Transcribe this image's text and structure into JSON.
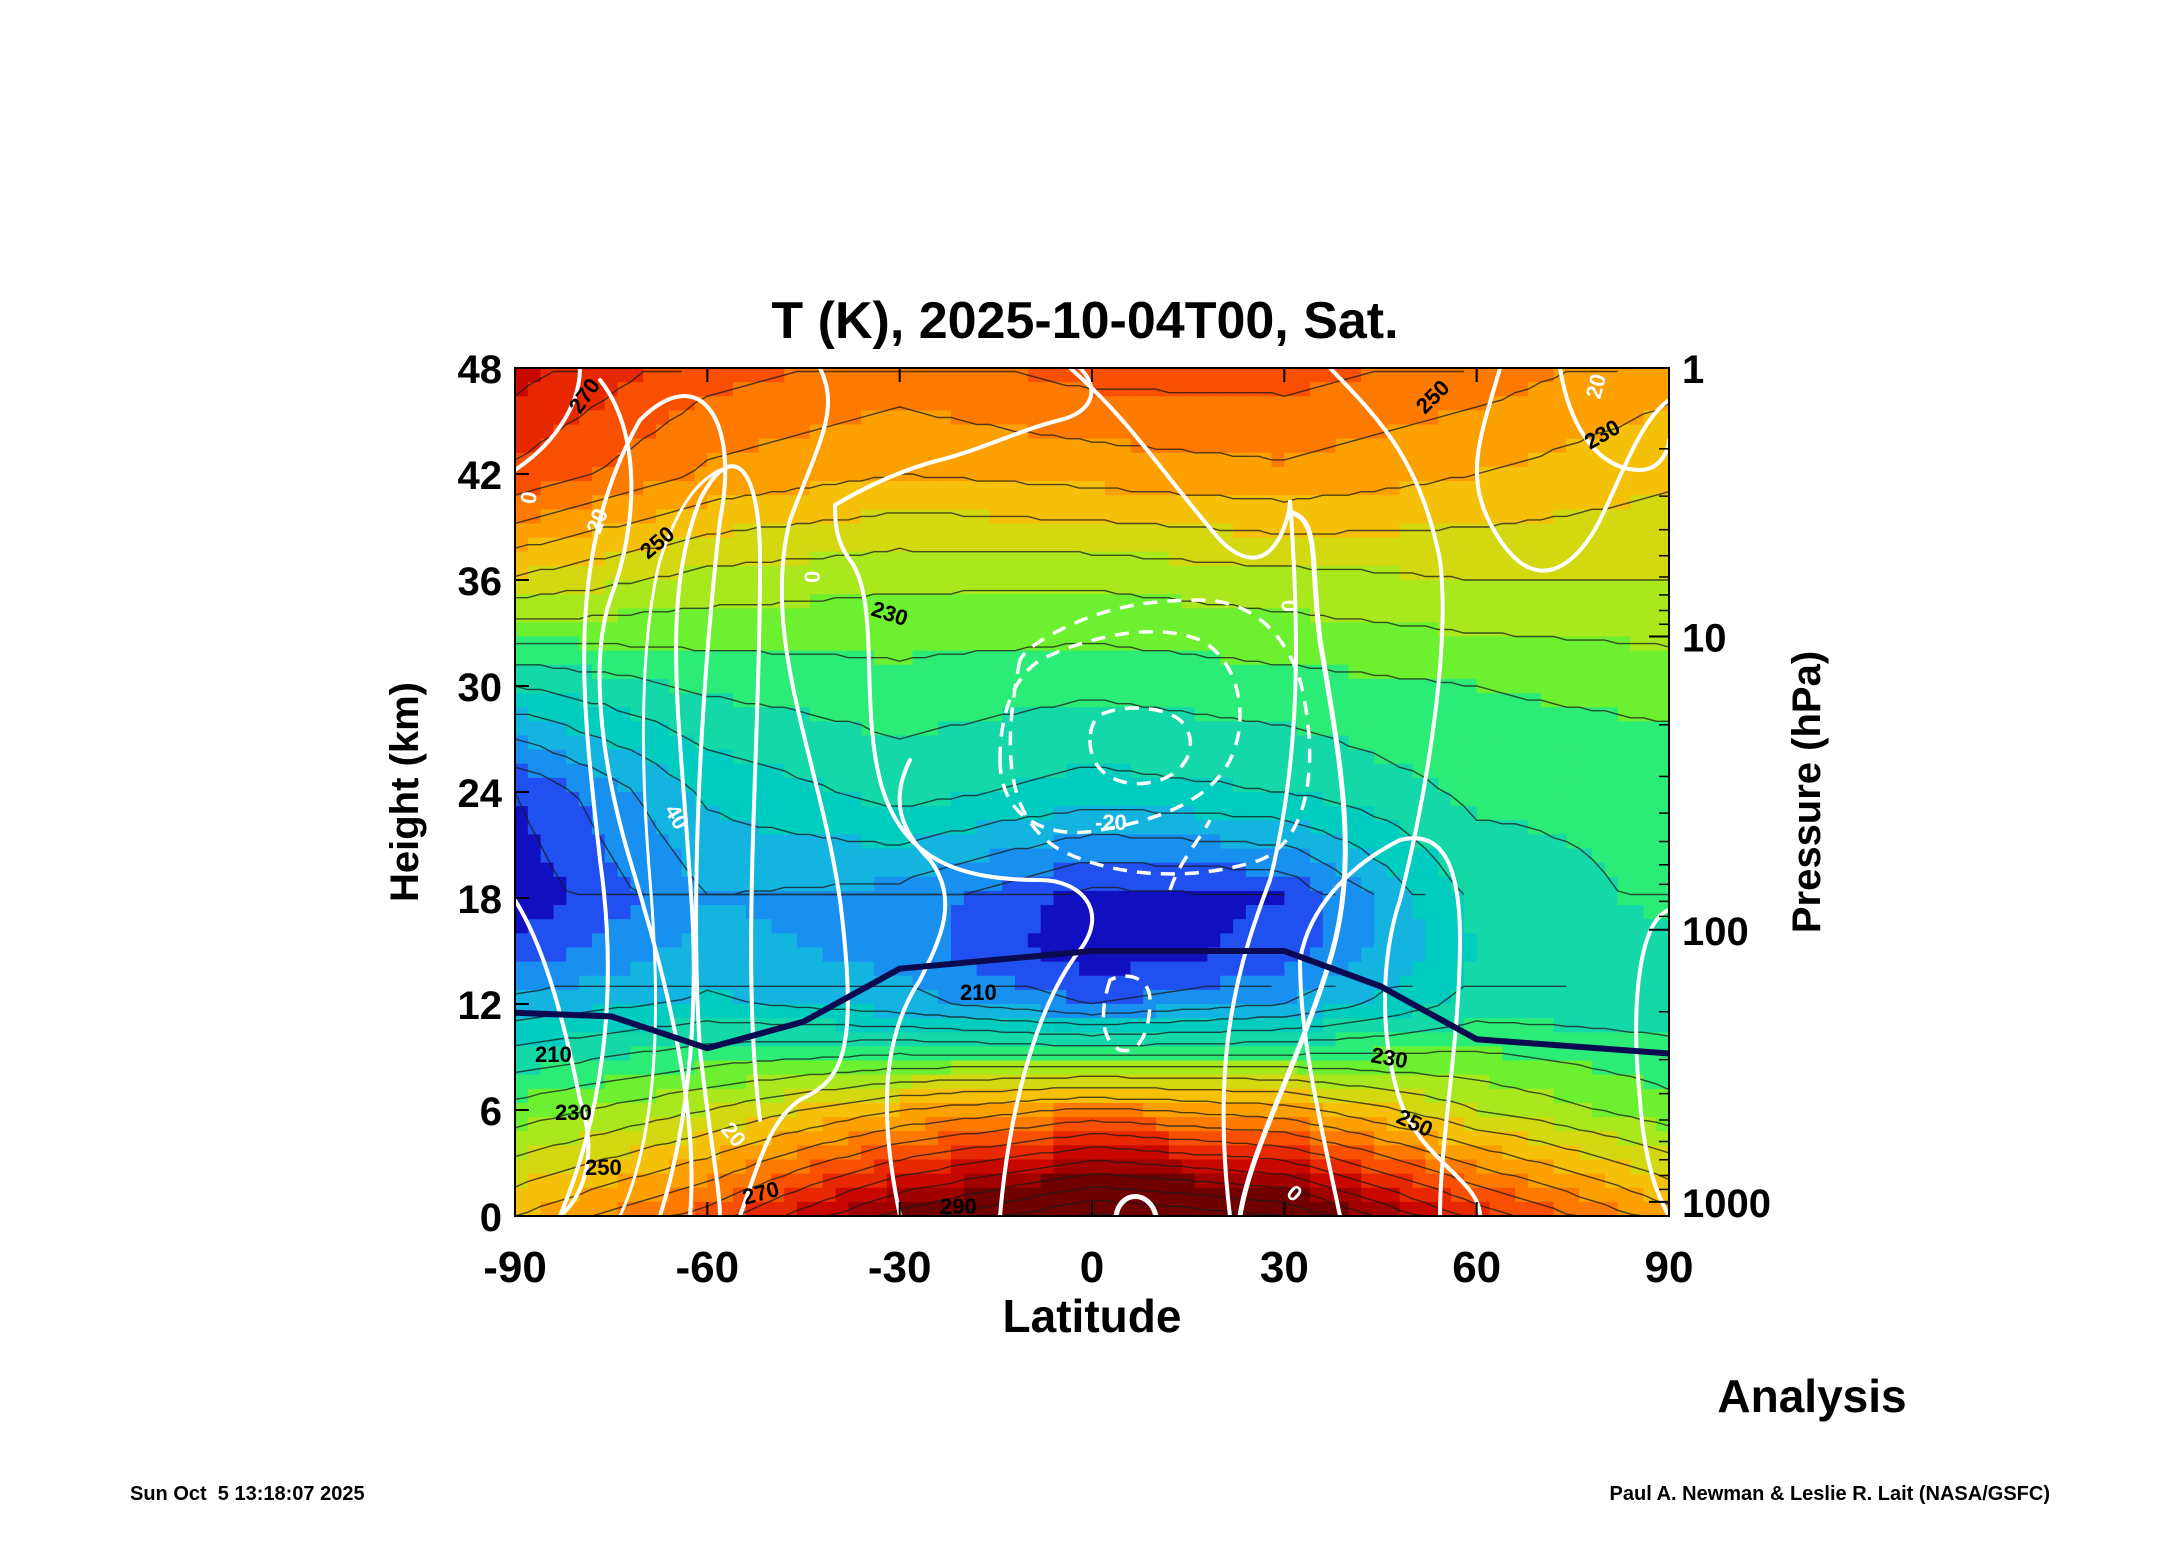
{
  "chart_data": {
    "type": "heatmap",
    "title": "T (K), 2025-10-04T00, Sat.",
    "xlabel": "Latitude",
    "ylabel_left": "Height (km)",
    "ylabel_right": "Pressure (hPa)",
    "xlim": [
      -90,
      90
    ],
    "ylim": [
      0,
      48
    ],
    "x_ticks": [
      -90,
      -60,
      -30,
      0,
      30,
      60,
      90
    ],
    "y_ticks": [
      0,
      6,
      12,
      18,
      24,
      30,
      36,
      42,
      48
    ],
    "pressure_ticks": [
      {
        "label": "1",
        "height_km": 48
      },
      {
        "label": "10",
        "height_km": 32.8
      },
      {
        "label": "100",
        "height_km": 16.2
      },
      {
        "label": "1000",
        "height_km": 0.8
      }
    ],
    "temperature_field": {
      "heights_km": [
        0,
        6,
        12,
        15,
        18,
        24,
        30,
        36,
        42,
        48
      ],
      "latitudes": [
        -90,
        -60,
        -30,
        0,
        30,
        60,
        90
      ],
      "values_K": [
        [
          250,
          262,
          282,
          296,
          290,
          268,
          252
        ],
        [
          232,
          240,
          250,
          256,
          252,
          240,
          232
        ],
        [
          212,
          216,
          212,
          205,
          210,
          222,
          222
        ],
        [
          202,
          212,
          208,
          196,
          202,
          220,
          224
        ],
        [
          196,
          210,
          208,
          198,
          200,
          222,
          226
        ],
        [
          200,
          216,
          222,
          218,
          220,
          226,
          226
        ],
        [
          220,
          226,
          228,
          226,
          228,
          230,
          232
        ],
        [
          244,
          238,
          236,
          236,
          238,
          240,
          240
        ],
        [
          264,
          254,
          250,
          252,
          254,
          250,
          246
        ],
        [
          272,
          262,
          258,
          262,
          262,
          258,
          252
        ]
      ]
    },
    "temperature_labels": [
      "270",
      "250",
      "230",
      "210",
      "230",
      "250",
      "270",
      "290",
      "210",
      "230",
      "250",
      "250",
      "230"
    ],
    "wind_labels": [
      "0",
      "20",
      "40",
      "0",
      "-20",
      "0",
      "20",
      "0",
      "20"
    ],
    "tropopause_height_km": [
      {
        "lat": -90,
        "z": 11.5
      },
      {
        "lat": -75,
        "z": 11.3
      },
      {
        "lat": -60,
        "z": 9.5
      },
      {
        "lat": -45,
        "z": 11.0
      },
      {
        "lat": -30,
        "z": 14.0
      },
      {
        "lat": 0,
        "z": 15.0
      },
      {
        "lat": 30,
        "z": 15.0
      },
      {
        "lat": 45,
        "z": 13.0
      },
      {
        "lat": 60,
        "z": 10.0
      },
      {
        "lat": 90,
        "z": 9.2
      }
    ],
    "colors": {
      "filled_contours": [
        "#00008b",
        "#1010c0",
        "#2050f0",
        "#1890f0",
        "#14b4e0",
        "#00ccc0",
        "#14d8a8",
        "#2cec78",
        "#6cf030",
        "#a8e81c",
        "#d4d810",
        "#f4c008",
        "#fca000",
        "#fc7a00",
        "#f85000",
        "#e82800",
        "#c80800",
        "#a00000",
        "#700000"
      ],
      "tropopause": "#0a0a50",
      "wind_contours": "#ffffff"
    },
    "annotation": "Analysis"
  },
  "footer": {
    "timestamp": "Sun Oct  5 13:18:07 2025",
    "credit": "Paul A. Newman & Leslie R. Lait (NASA/GSFC)"
  }
}
